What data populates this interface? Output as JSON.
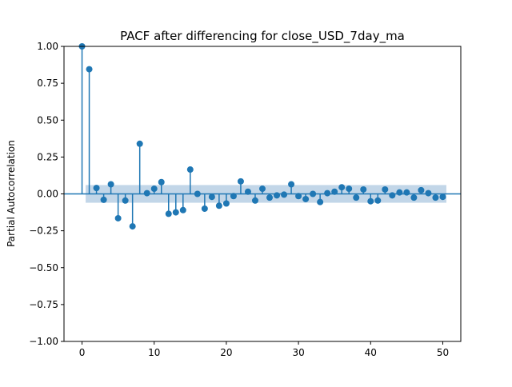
{
  "chart_data": {
    "type": "stem",
    "title": "PACF after differencing for close_USD_7day_ma",
    "xlabel": "",
    "ylabel": "Partial Autocorrelation",
    "xlim": [
      -2.5,
      52.5
    ],
    "ylim": [
      -1.0,
      1.0
    ],
    "x_ticks": [
      0,
      10,
      20,
      30,
      40,
      50
    ],
    "x_tick_labels": [
      "0",
      "10",
      "20",
      "30",
      "40",
      "50"
    ],
    "y_ticks": [
      -1.0,
      -0.75,
      -0.5,
      -0.25,
      0.0,
      0.25,
      0.5,
      0.75,
      1.0
    ],
    "y_tick_labels": [
      "−1.00",
      "−0.75",
      "−0.50",
      "−0.25",
      "0.00",
      "0.25",
      "0.50",
      "0.75",
      "1.00"
    ],
    "confidence_band": 0.06,
    "grid": false,
    "colors": {
      "stem": "#1f77b4",
      "band": "#aec8e0",
      "axis": "#000000"
    },
    "x": [
      0,
      1,
      2,
      3,
      4,
      5,
      6,
      7,
      8,
      9,
      10,
      11,
      12,
      13,
      14,
      15,
      16,
      17,
      18,
      19,
      20,
      21,
      22,
      23,
      24,
      25,
      26,
      27,
      28,
      29,
      30,
      31,
      32,
      33,
      34,
      35,
      36,
      37,
      38,
      39,
      40,
      41,
      42,
      43,
      44,
      45,
      46,
      47,
      48,
      49,
      50
    ],
    "values": [
      1.0,
      0.845,
      0.04,
      -0.04,
      0.065,
      -0.165,
      -0.045,
      -0.22,
      0.34,
      0.005,
      0.035,
      0.08,
      -0.135,
      -0.125,
      -0.11,
      0.165,
      0.0,
      -0.1,
      -0.02,
      -0.08,
      -0.065,
      -0.015,
      0.085,
      0.015,
      -0.045,
      0.035,
      -0.025,
      -0.01,
      -0.005,
      0.065,
      -0.015,
      -0.035,
      0.0,
      -0.055,
      0.005,
      0.015,
      0.045,
      0.035,
      -0.025,
      0.03,
      -0.05,
      -0.045,
      0.03,
      -0.01,
      0.01,
      0.01,
      -0.025,
      0.025,
      0.005,
      -0.025,
      -0.02
    ]
  }
}
